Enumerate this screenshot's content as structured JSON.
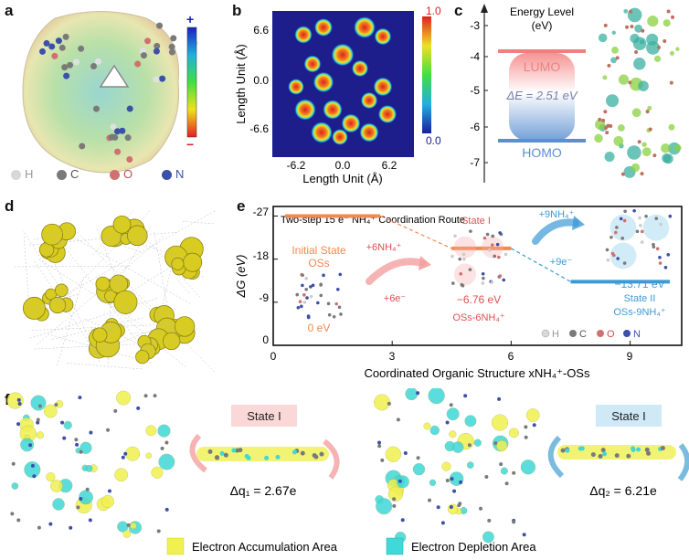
{
  "panel_labels": {
    "a": "a",
    "b": "b",
    "c": "c",
    "d": "d",
    "e": "e",
    "f": "f"
  },
  "panel_a": {
    "colorbar_plus": "+",
    "colorbar_minus": "−",
    "legend": [
      {
        "symbol": "H",
        "color": "#d8d8d8"
      },
      {
        "symbol": "C",
        "color": "#7a7a7a"
      },
      {
        "symbol": "O",
        "color": "#d07070"
      },
      {
        "symbol": "N",
        "color": "#3c50a8"
      }
    ]
  },
  "panel_b": {
    "ylabel": "Length Unit (Å)",
    "xlabel": "Length Unit (Å)",
    "yticks": [
      "6.6",
      "0.0",
      "-6.6"
    ],
    "xticks": [
      "-6.2",
      "0.0",
      "6.2"
    ],
    "colorbar_max": "1.0",
    "colorbar_min": "0.0"
  },
  "panel_c": {
    "title_line1": "Energy Level",
    "title_line2": "(eV)",
    "yticks": [
      "-3",
      "-4",
      "-5",
      "-6",
      "-7"
    ],
    "lumo_label": "LUMO",
    "homo_label": "HOMO",
    "gap_label": "ΔE = 2.51 eV"
  },
  "panel_e": {
    "title": "Two-step 15 e⁻ NH₄⁺ Coordination Route",
    "ylabel": "ΔG (eV)",
    "xlabel": "Coordinated Organic Structure xNH₄⁺-OSs",
    "yticks": [
      "-27",
      "-18",
      "-9",
      "0"
    ],
    "xticks": [
      "0",
      "3",
      "6",
      "9"
    ],
    "initial_label_1": "Initial State",
    "initial_label_2": "OSs",
    "initial_energy": "0 eV",
    "step1_add": "+6NH₄⁺",
    "step1_e": "+6e⁻",
    "state1_label": "State I",
    "state1_energy": "−6.76 eV",
    "state1_name": "OSs-6NH₄⁺",
    "step2_add": "+9NH₄⁺",
    "step2_e": "+9e⁻",
    "state2_energy": "−13.71 eV",
    "state2_label": "State II",
    "state2_name": "OSs-9NH₄⁺",
    "legend": [
      {
        "symbol": "H",
        "color": "#d8d8d8"
      },
      {
        "symbol": "C",
        "color": "#7a7a7a"
      },
      {
        "symbol": "O",
        "color": "#d07070"
      },
      {
        "symbol": "N",
        "color": "#3c50a8"
      }
    ],
    "levels": [
      {
        "x_from": 0.3,
        "x_to": 2.7,
        "dG": 0
      },
      {
        "x_from": 4.5,
        "x_to": 6.0,
        "dG": -6.76
      },
      {
        "x_from": 7.5,
        "x_to": 10.0,
        "dG": -13.71
      }
    ],
    "x_range": [
      0,
      10.3
    ],
    "y_range": [
      -27,
      2
    ]
  },
  "panel_f": {
    "state_label_left": "State I",
    "state_label_right": "State I",
    "dq1": "Δq₁ = 2.67e",
    "dq2": "Δq₂ = 6.21e",
    "legend_accum": "Electron Accumulation Area",
    "legend_depl": "Electron Depletion Area"
  },
  "colors": {
    "lumo": "#f08080",
    "homo": "#5b8fd0",
    "orange": "#f08a50",
    "blue": "#3d9ad6",
    "accum": "#f0f050",
    "depl": "#40d8d8"
  }
}
